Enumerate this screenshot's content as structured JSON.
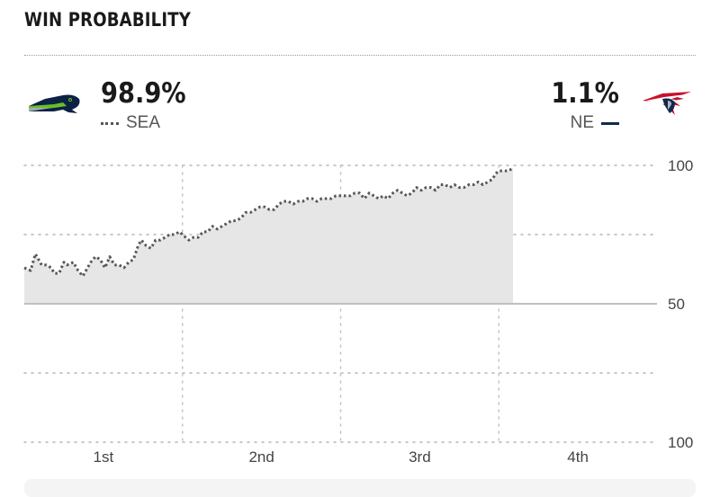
{
  "header": {
    "title": "WIN PROBABILITY"
  },
  "teams": {
    "home": {
      "abbr": "SEA",
      "pct": "98.9%",
      "logo_icon": "seahawks-logo-icon",
      "color": "#555555"
    },
    "away": {
      "abbr": "NE",
      "pct": "1.1%",
      "logo_icon": "patriots-logo-icon",
      "color": "#0f2a4d"
    }
  },
  "chart_data": {
    "type": "area",
    "x_categories": [
      "1st",
      "2nd",
      "3rd",
      "4th"
    ],
    "y_tick_labels": [
      "100",
      "50",
      "100"
    ],
    "series": [
      {
        "name": "SEA",
        "x": [
          0,
          0.04,
          0.07,
          0.09,
          0.11,
          0.14,
          0.17,
          0.19,
          0.22,
          0.25,
          0.27,
          0.31,
          0.34,
          0.37,
          0.4,
          0.42,
          0.45,
          0.48,
          0.51,
          0.54,
          0.57,
          0.6,
          0.63,
          0.66,
          0.69,
          0.72,
          0.74,
          0.77,
          0.8,
          0.83,
          0.86,
          0.89,
          0.92,
          0.95,
          0.98,
          1.0,
          1.02,
          1.04,
          1.07,
          1.1,
          1.13,
          1.16,
          1.19,
          1.22,
          1.25,
          1.28,
          1.31,
          1.34,
          1.37,
          1.4,
          1.43,
          1.46,
          1.49,
          1.52,
          1.55,
          1.58,
          1.61,
          1.64,
          1.67,
          1.7,
          1.73,
          1.76,
          1.79,
          1.82,
          1.85,
          1.88,
          1.91,
          1.94,
          1.97,
          2.0,
          2.03,
          2.06,
          2.09,
          2.12,
          2.15,
          2.18,
          2.21,
          2.24,
          2.27,
          2.3,
          2.33,
          2.36,
          2.39,
          2.42,
          2.45,
          2.48,
          2.51,
          2.54,
          2.57,
          2.6,
          2.63,
          2.66,
          2.69,
          2.72,
          2.75,
          2.78,
          2.81,
          2.84,
          2.87,
          2.9,
          2.93,
          2.96,
          2.98,
          3.0,
          3.03,
          3.06,
          3.09
        ],
        "values": [
          63,
          62,
          68,
          66,
          64,
          64,
          63,
          61,
          61,
          65,
          64,
          65,
          62,
          60,
          63,
          65,
          67,
          66,
          63,
          67,
          64,
          64,
          63,
          65,
          66,
          71,
          73,
          71,
          70,
          73,
          73,
          74,
          75,
          75,
          76,
          75,
          74,
          73,
          74,
          74,
          76,
          76,
          78,
          77,
          78,
          79,
          80,
          80,
          81,
          83,
          83,
          84,
          85,
          85,
          84,
          84,
          86,
          87,
          87,
          86,
          87,
          87,
          88,
          88,
          87,
          88,
          88,
          88,
          89,
          89,
          89,
          89,
          90,
          90,
          88,
          90,
          89,
          88,
          89,
          88,
          90,
          91,
          90,
          89,
          90,
          92,
          91,
          92,
          92,
          91,
          93,
          93,
          92,
          93,
          92,
          92,
          93,
          93,
          94,
          93,
          94,
          95,
          97,
          98,
          98,
          98,
          99
        ]
      }
    ],
    "ylim": [
      0,
      100
    ],
    "xlim": [
      0,
      4
    ],
    "grid": true,
    "midline": 50
  }
}
